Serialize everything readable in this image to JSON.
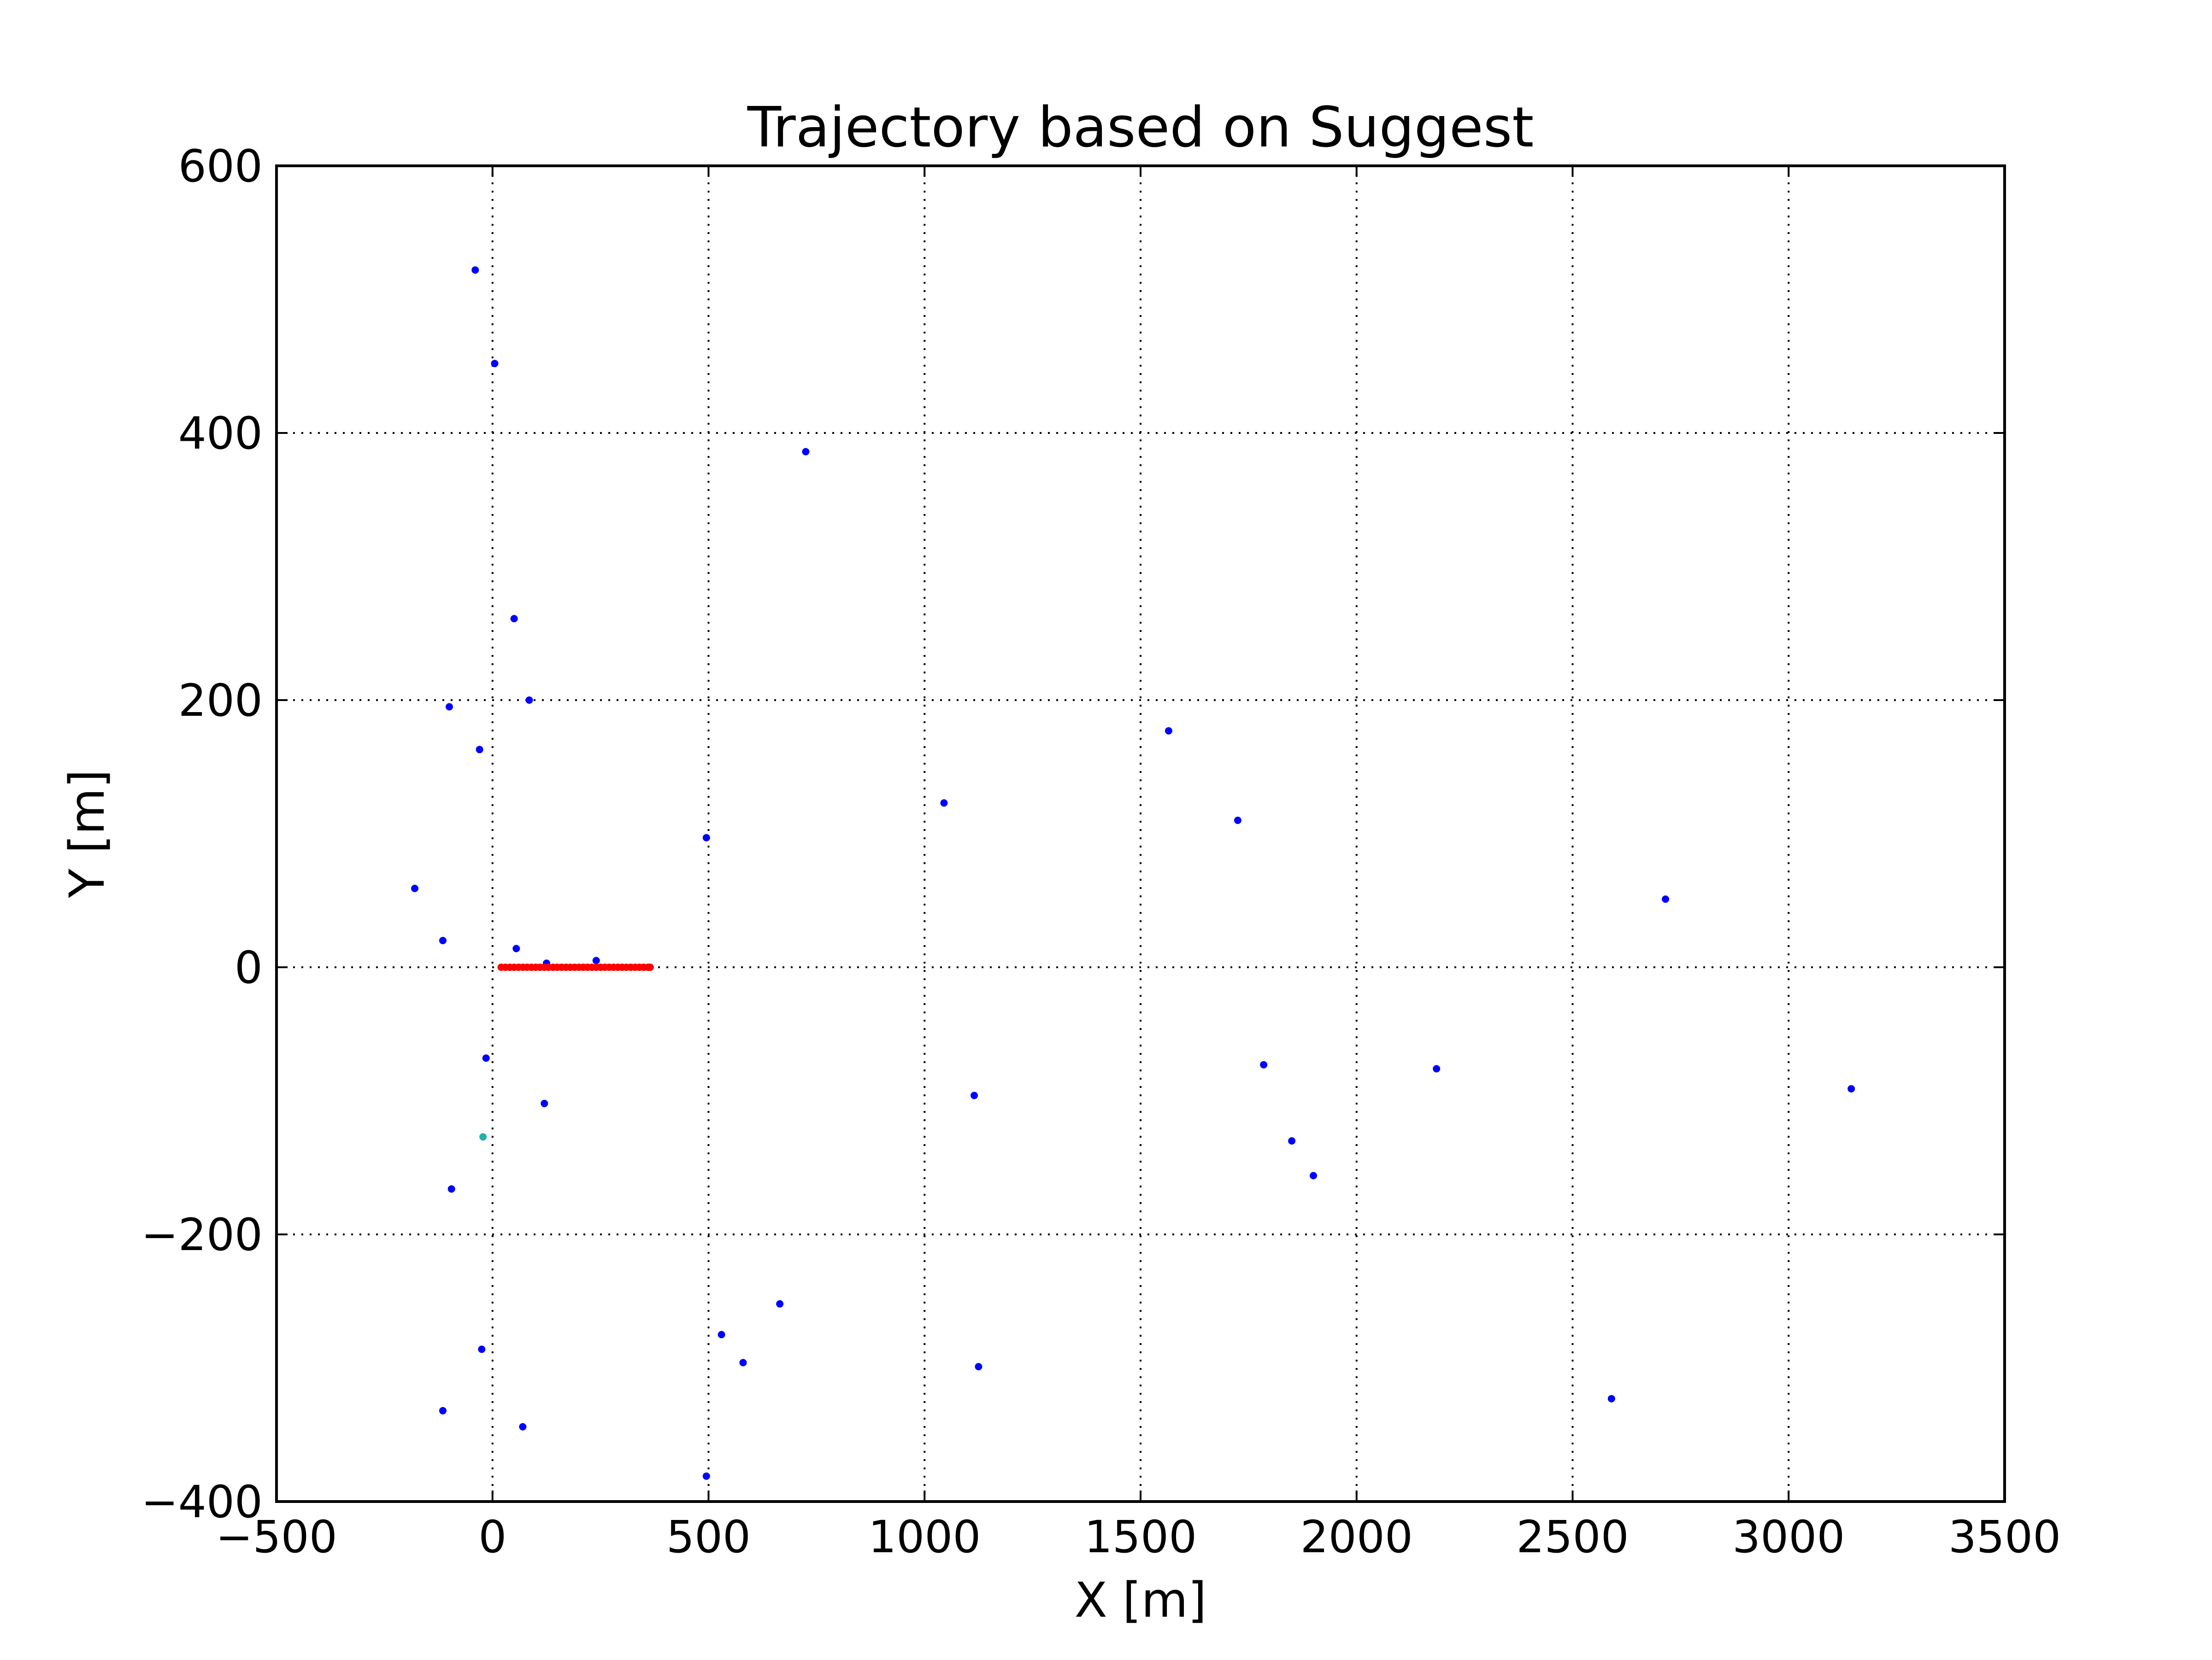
{
  "chart_data": {
    "type": "scatter",
    "title": "Trajectory based on Suggest",
    "xlabel": "X [m]",
    "ylabel": "Y [m]",
    "xlim": [
      -500,
      3500
    ],
    "ylim": [
      -400,
      600
    ],
    "xticks": [
      -500,
      0,
      500,
      1000,
      1500,
      2000,
      2500,
      3000,
      3500
    ],
    "yticks": [
      -400,
      -200,
      0,
      200,
      400,
      600
    ],
    "xtick_labels": [
      "−500",
      "0",
      "500",
      "1000",
      "1500",
      "2000",
      "2500",
      "3000",
      "3500"
    ],
    "ytick_labels": [
      "−400",
      "−200",
      "0",
      "200",
      "400",
      "600"
    ],
    "grid": true,
    "legend": "none",
    "series": [
      {
        "color": "#0000ff",
        "points": [
          [
            -40,
            522
          ],
          [
            5,
            452
          ],
          [
            725,
            386
          ],
          [
            50,
            261
          ],
          [
            -100,
            195
          ],
          [
            85,
            200
          ],
          [
            -30,
            163
          ],
          [
            1565,
            177
          ],
          [
            1045,
            123
          ],
          [
            495,
            97
          ],
          [
            1725,
            110
          ],
          [
            -180,
            59
          ],
          [
            2715,
            51
          ],
          [
            -115,
            20
          ],
          [
            55,
            14
          ],
          [
            125,
            3
          ],
          [
            240,
            5
          ],
          [
            -15,
            -68
          ],
          [
            120,
            -102
          ],
          [
            1785,
            -73
          ],
          [
            2185,
            -76
          ],
          [
            1115,
            -96
          ],
          [
            3145,
            -91
          ],
          [
            1850,
            -130
          ],
          [
            1900,
            -156
          ],
          [
            -95,
            -166
          ],
          [
            665,
            -252
          ],
          [
            530,
            -275
          ],
          [
            580,
            -296
          ],
          [
            1125,
            -299
          ],
          [
            -25,
            -286
          ],
          [
            -115,
            -332
          ],
          [
            70,
            -344
          ],
          [
            2590,
            -323
          ],
          [
            495,
            -381
          ]
        ]
      },
      {
        "color": "#ff0000",
        "x": [
          20,
          30,
          40,
          50,
          60,
          70,
          80,
          90,
          100,
          110,
          120,
          130,
          140,
          150,
          160,
          170,
          180,
          190,
          200,
          210,
          220,
          230,
          240,
          250,
          260,
          270,
          280,
          290,
          300,
          310,
          320,
          330,
          340,
          350,
          360,
          365
        ],
        "y": 0
      },
      {
        "color": "#20b2aa",
        "points": [
          [
            -22,
            -127
          ]
        ]
      }
    ]
  }
}
